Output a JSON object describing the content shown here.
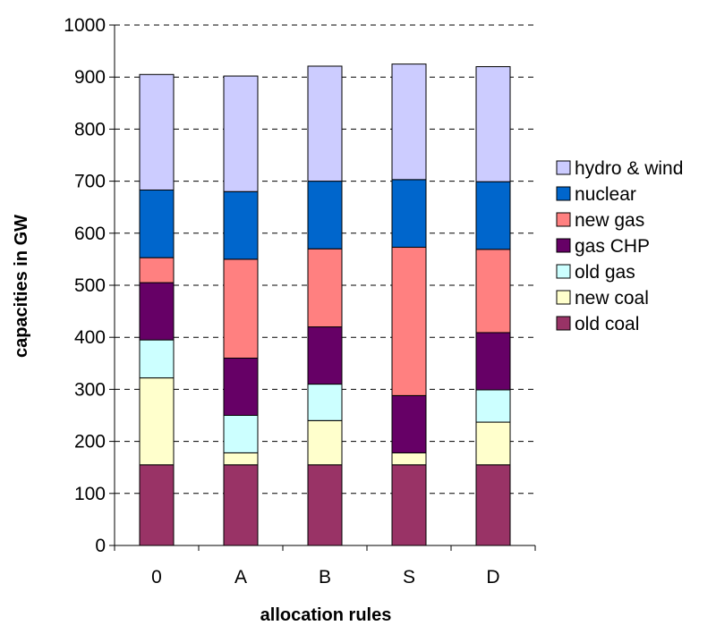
{
  "chart_data": {
    "type": "bar",
    "stacked": true,
    "categories": [
      "0",
      "A",
      "B",
      "S",
      "D"
    ],
    "xlabel": "allocation rules",
    "ylabel": "capacities in GW",
    "ylim": [
      0,
      1000
    ],
    "yticks": [
      0,
      100,
      200,
      300,
      400,
      500,
      600,
      700,
      800,
      900,
      1000
    ],
    "grid": "horizontal dashed",
    "legend_position": "right",
    "series": [
      {
        "name": "old coal",
        "color": "#993366",
        "values": [
          155,
          155,
          155,
          155,
          155
        ]
      },
      {
        "name": "new coal",
        "color": "#FFFFCC",
        "values": [
          167,
          23,
          85,
          23,
          82
        ]
      },
      {
        "name": "old gas",
        "color": "#CCFFFF",
        "values": [
          73,
          72,
          70,
          0,
          62
        ]
      },
      {
        "name": "gas CHP",
        "color": "#660066",
        "values": [
          110,
          110,
          110,
          110,
          110
        ]
      },
      {
        "name": "new gas",
        "color": "#FF8080",
        "values": [
          48,
          190,
          150,
          285,
          160
        ]
      },
      {
        "name": "nuclear",
        "color": "#0066CC",
        "values": [
          130,
          130,
          130,
          130,
          130
        ]
      },
      {
        "name": "hydro & wind",
        "color": "#CCCCFF",
        "values": [
          222,
          222,
          221,
          222,
          221
        ]
      }
    ]
  }
}
